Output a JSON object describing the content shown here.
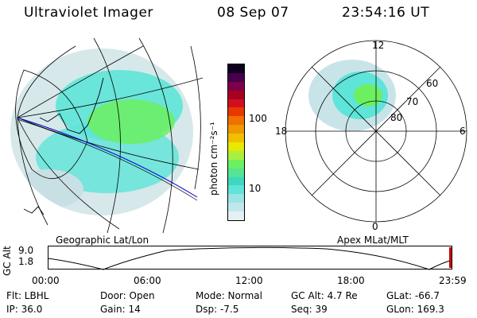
{
  "header": {
    "title": "Ultraviolet Imager",
    "date": "08 Sep 07",
    "time": "23:54:16 UT"
  },
  "left_panel": {
    "caption": "Geographic Lat/Lon"
  },
  "right_panel": {
    "caption": "Apex MLat/MLT",
    "mlt_labels": {
      "top": "12",
      "left": "18",
      "right": "6",
      "bottom": "0"
    },
    "lat_labels": [
      "60",
      "70",
      "80"
    ]
  },
  "colorbar": {
    "unit_label": "photon cm⁻²s⁻¹",
    "ticks": [
      "100",
      "10"
    ],
    "colors": [
      "#e4f0f2",
      "#bfe8ec",
      "#9ae4e4",
      "#5ee4d8",
      "#3ed8c0",
      "#54e494",
      "#6cf060",
      "#a8f040",
      "#e8e800",
      "#f0c000",
      "#f09800",
      "#f07000",
      "#e83800",
      "#d01020",
      "#a80020",
      "#7c0048",
      "#48004c",
      "#100020"
    ]
  },
  "timeline": {
    "ylabel": "GC Alt",
    "yticks": [
      "9.0",
      "1.8"
    ],
    "xticks": [
      "00:00",
      "06:00",
      "12:00",
      "18:00",
      "23:59"
    ]
  },
  "info": {
    "filter": "Flt: LBHL",
    "ip": "IP: 36.0",
    "door": "Door: Open",
    "gain": "Gain: 14",
    "mode": "Mode: Normal",
    "dsp": "Dsp:   -7.5",
    "gc_alt": "GC Alt: 4.7 Re",
    "seq": "Seq: 39",
    "glat": "GLat: -66.7",
    "glon": "GLon: 169.3"
  }
}
